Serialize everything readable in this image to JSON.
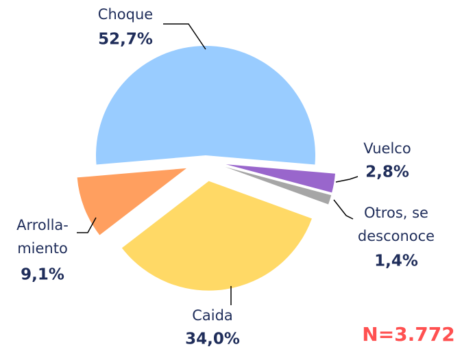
{
  "chart_data": {
    "type": "pie",
    "categories": [
      "Choque",
      "Vuelco",
      "Otros, se\ndesconoce",
      "Caida",
      "Arrolla-\nmiento"
    ],
    "values": [
      52.7,
      2.8,
      1.4,
      34.0,
      9.1
    ],
    "value_labels": [
      "52,7%",
      "2,8%",
      "1,4%",
      "34,0%",
      "9,1%"
    ],
    "colors": [
      "#99ccff",
      "#9966cc",
      "#a6a6a6",
      "#ffd966",
      "#ff9f5f"
    ],
    "annotation": "N=3.772"
  }
}
